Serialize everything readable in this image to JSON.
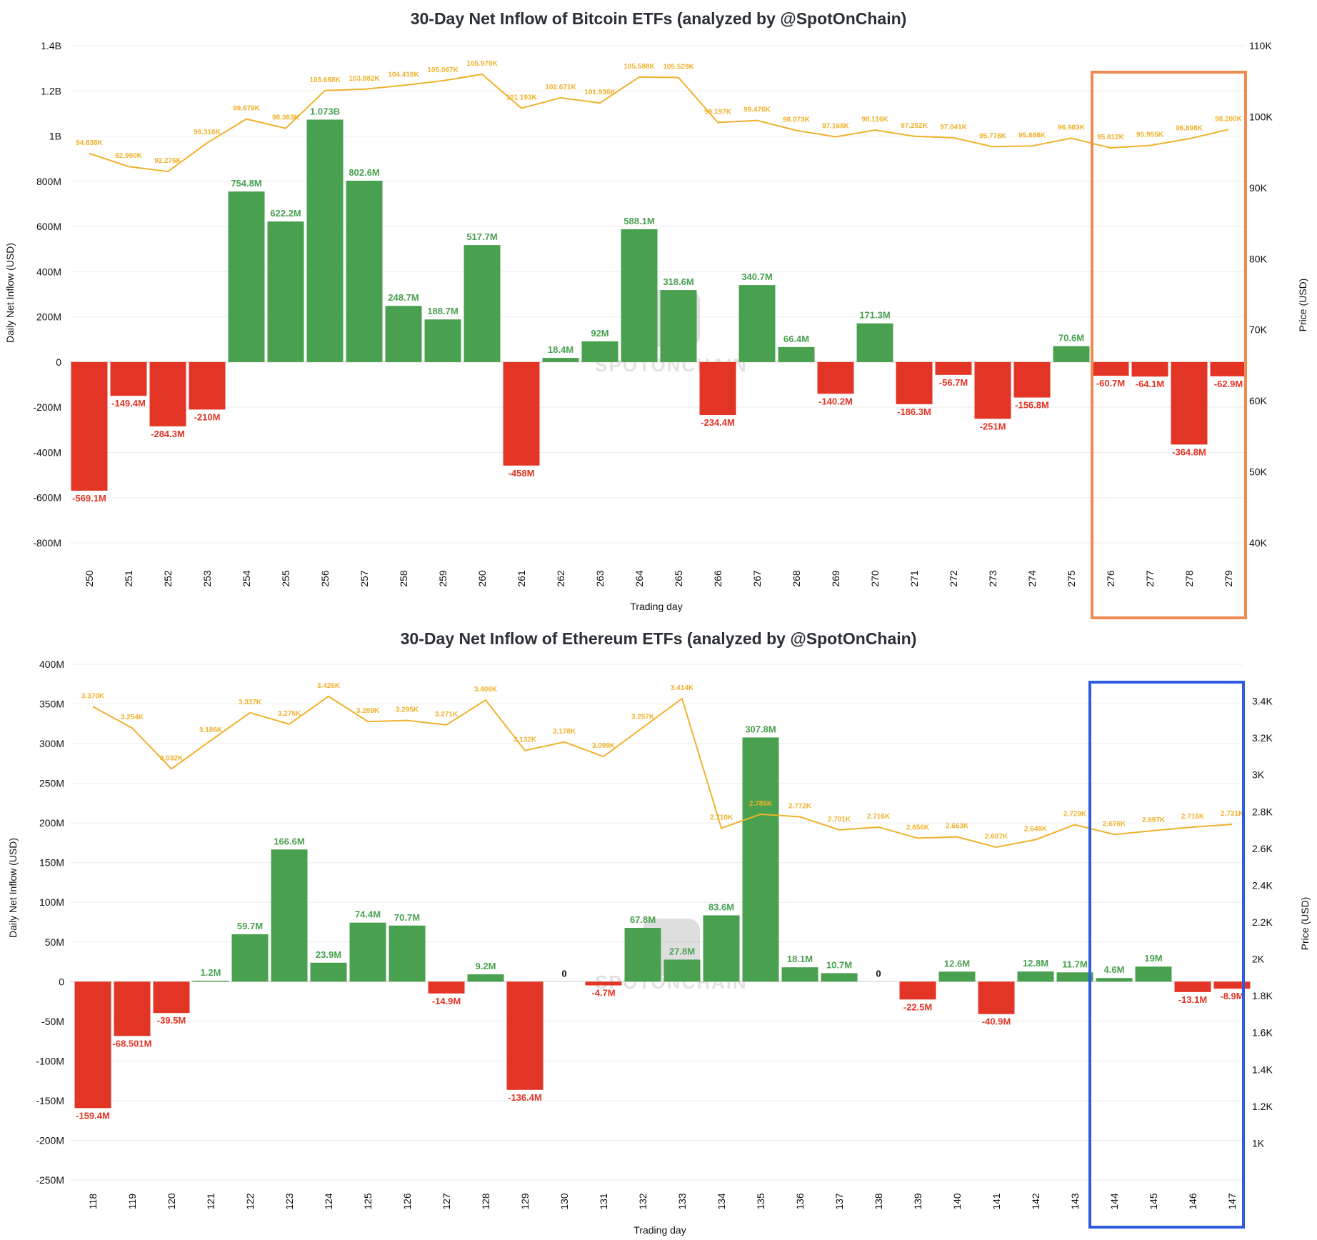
{
  "colors": {
    "positive": "#49a14f",
    "negative": "#e33526",
    "price": "#f0b22e",
    "grid": "#eeeeee",
    "btc_highlight": "#ef8b52",
    "eth_highlight": "#2d5be3",
    "watermark": "#dcdcdc"
  },
  "watermark": "SPOTONCHAIN",
  "chart_data": [
    {
      "type": "bar",
      "title": "30-Day Net Inflow of Bitcoin ETFs (analyzed by @SpotOnChain)",
      "xlabel": "Trading day",
      "ylabel": "Daily Net Inflow (USD)",
      "y2label": "Price (USD)",
      "categories": [
        "250",
        "251",
        "252",
        "253",
        "254",
        "255",
        "256",
        "257",
        "258",
        "259",
        "260",
        "261",
        "262",
        "263",
        "264",
        "265",
        "266",
        "267",
        "268",
        "269",
        "270",
        "271",
        "272",
        "273",
        "274",
        "275",
        "276",
        "277",
        "278",
        "279"
      ],
      "series": [
        {
          "type": "bar",
          "axis": "left",
          "values": [
            -569.1,
            -149.4,
            -284.3,
            -210,
            754.8,
            622.2,
            1073,
            802.6,
            248.7,
            188.7,
            517.7,
            -458,
            18.4,
            92,
            588.1,
            318.6,
            -234.4,
            340.7,
            66.4,
            -140.2,
            171.3,
            -186.3,
            -56.7,
            -251,
            -156.8,
            70.6,
            -60.7,
            -64.1,
            -364.8,
            -62.9
          ],
          "unit": "M USD",
          "labels": [
            "-569.1M",
            "-149.4M",
            "-284.3M",
            "-210M",
            "754.8M",
            "622.2M",
            "1.073B",
            "802.6M",
            "248.7M",
            "188.7M",
            "517.7M",
            "-458M",
            "18.4M",
            "92M",
            "588.1M",
            "318.6M",
            "-234.4M",
            "340.7M",
            "66.4M",
            "-140.2M",
            "171.3M",
            "-186.3M",
            "-56.7M",
            "-251M",
            "-156.8M",
            "70.6M",
            "-60.7M",
            "-64.1M",
            "-364.8M",
            "-62.9M"
          ]
        },
        {
          "type": "line",
          "axis": "right",
          "values": [
            94838,
            92990,
            92276,
            96316,
            99679,
            98363,
            103688,
            103882,
            104416,
            105067,
            105979,
            101193,
            102671,
            101936,
            105588,
            105529,
            99197,
            99476,
            98073,
            97168,
            98116,
            97252,
            97041,
            95778,
            95888,
            96983,
            95612,
            95955,
            96898,
            98200
          ],
          "labels": [
            "94.838K",
            "92.990K",
            "92.276K",
            "96.316K",
            "99.679K",
            "98.363K",
            "103.688K",
            "103.882K",
            "104.416K",
            "105.067K",
            "105.979K",
            "101.193K",
            "102.671K",
            "101.936K",
            "105.588K",
            "105.529K",
            "99.197K",
            "99.476K",
            "98.073K",
            "97.168K",
            "98.116K",
            "97.252K",
            "97.041K",
            "95.778K",
            "95.888K",
            "96.983K",
            "95.612K",
            "95.955K",
            "96.898K",
            "98.200K"
          ]
        }
      ],
      "ylim": [
        -800,
        1400
      ],
      "y_ticks": [
        {
          "v": 1400,
          "label": "1.4B"
        },
        {
          "v": 1200,
          "label": "1.2B"
        },
        {
          "v": 1000,
          "label": "1B"
        },
        {
          "v": 800,
          "label": "800M"
        },
        {
          "v": 600,
          "label": "600M"
        },
        {
          "v": 400,
          "label": "400M"
        },
        {
          "v": 200,
          "label": "200M"
        },
        {
          "v": 0,
          "label": "0"
        },
        {
          "v": -200,
          "label": "-200M"
        },
        {
          "v": -400,
          "label": "-400M"
        },
        {
          "v": -600,
          "label": "-600M"
        },
        {
          "v": -800,
          "label": "-800M"
        }
      ],
      "y2lim": [
        40000,
        110000
      ],
      "y2_ticks": [
        {
          "v": 110000,
          "label": "110K"
        },
        {
          "v": 100000,
          "label": "100K"
        },
        {
          "v": 90000,
          "label": "90K"
        },
        {
          "v": 80000,
          "label": "80K"
        },
        {
          "v": 70000,
          "label": "70K"
        },
        {
          "v": 60000,
          "label": "60K"
        },
        {
          "v": 50000,
          "label": "50K"
        },
        {
          "v": 40000,
          "label": "40K"
        }
      ],
      "highlight": {
        "from": "276",
        "to": "279",
        "color": "orange"
      }
    },
    {
      "type": "bar",
      "title": "30-Day Net Inflow of Ethereum ETFs (analyzed by @SpotOnChain)",
      "xlabel": "Trading day",
      "ylabel": "Daily Net Inflow (USD)",
      "y2label": "Price (USD)",
      "categories": [
        "118",
        "119",
        "120",
        "121",
        "122",
        "123",
        "124",
        "125",
        "126",
        "127",
        "128",
        "129",
        "130",
        "131",
        "132",
        "133",
        "134",
        "135",
        "136",
        "137",
        "138",
        "139",
        "140",
        "141",
        "142",
        "143",
        "144",
        "145",
        "146",
        "147"
      ],
      "series": [
        {
          "type": "bar",
          "axis": "left",
          "values": [
            -159.4,
            -68.501,
            -39.5,
            1.2,
            59.7,
            166.6,
            23.9,
            74.4,
            70.7,
            -14.9,
            9.2,
            -136.4,
            0,
            -4.7,
            67.8,
            27.8,
            83.6,
            307.8,
            18.1,
            10.7,
            0,
            -22.5,
            12.6,
            -40.9,
            12.8,
            11.7,
            4.6,
            19,
            -13.1,
            -8.9
          ],
          "unit": "M USD",
          "labels": [
            "-159.4M",
            "-68.501M",
            "-39.5M",
            "1.2M",
            "59.7M",
            "166.6M",
            "23.9M",
            "74.4M",
            "70.7M",
            "-14.9M",
            "9.2M",
            "-136.4M",
            "0",
            "-4.7M",
            "67.8M",
            "27.8M",
            "83.6M",
            "307.8M",
            "18.1M",
            "10.7M",
            "0",
            "-22.5M",
            "12.6M",
            "-40.9M",
            "12.8M",
            "11.7M",
            "4.6M",
            "19M",
            "-13.1M",
            "-8.9M"
          ]
        },
        {
          "type": "line",
          "axis": "right",
          "values": [
            3370,
            3254,
            3032,
            3186,
            3337,
            3275,
            3426,
            3289,
            3295,
            3271,
            3406,
            3132,
            3178,
            3099,
            3257,
            3414,
            2710,
            2786,
            2772,
            2701,
            2716,
            2656,
            2663,
            2607,
            2648,
            2729,
            2676,
            2697,
            2716,
            2731
          ],
          "labels": [
            "3.370K",
            "3.254K",
            "3.032K",
            "3.186K",
            "3.337K",
            "3.275K",
            "3.426K",
            "3.289K",
            "3.295K",
            "3.271K",
            "3.406K",
            "3.132K",
            "3.178K",
            "3.099K",
            "3.257K",
            "3.414K",
            "2.710K",
            "2.786K",
            "2.772K",
            "2.701K",
            "2.716K",
            "2.656K",
            "2.663K",
            "2.607K",
            "2.648K",
            "2.729K",
            "2.676K",
            "2.697K",
            "2.716K",
            "2.731K"
          ]
        }
      ],
      "ylim": [
        -250,
        400
      ],
      "y_ticks": [
        {
          "v": 400,
          "label": "400M"
        },
        {
          "v": 350,
          "label": "350M"
        },
        {
          "v": 300,
          "label": "300M"
        },
        {
          "v": 250,
          "label": "250M"
        },
        {
          "v": 200,
          "label": "200M"
        },
        {
          "v": 150,
          "label": "150M"
        },
        {
          "v": 100,
          "label": "100M"
        },
        {
          "v": 50,
          "label": "50M"
        },
        {
          "v": 0,
          "label": "0"
        },
        {
          "v": -50,
          "label": "-50M"
        },
        {
          "v": -100,
          "label": "-100M"
        },
        {
          "v": -150,
          "label": "-150M"
        },
        {
          "v": -200,
          "label": "-200M"
        },
        {
          "v": -250,
          "label": "-250M"
        }
      ],
      "y2lim": [
        800,
        3600
      ],
      "y2_ticks": [
        {
          "v": 3400,
          "label": "3.4K"
        },
        {
          "v": 3200,
          "label": "3.2K"
        },
        {
          "v": 3000,
          "label": "3K"
        },
        {
          "v": 2800,
          "label": "2.8K"
        },
        {
          "v": 2600,
          "label": "2.6K"
        },
        {
          "v": 2400,
          "label": "2.4K"
        },
        {
          "v": 2200,
          "label": "2.2K"
        },
        {
          "v": 2000,
          "label": "2K"
        },
        {
          "v": 1800,
          "label": "1.8K"
        },
        {
          "v": 1600,
          "label": "1.6K"
        },
        {
          "v": 1400,
          "label": "1.4K"
        },
        {
          "v": 1200,
          "label": "1.2K"
        },
        {
          "v": 1000,
          "label": "1K"
        }
      ],
      "highlight": {
        "from": "144",
        "to": "147",
        "color": "blue"
      }
    }
  ]
}
